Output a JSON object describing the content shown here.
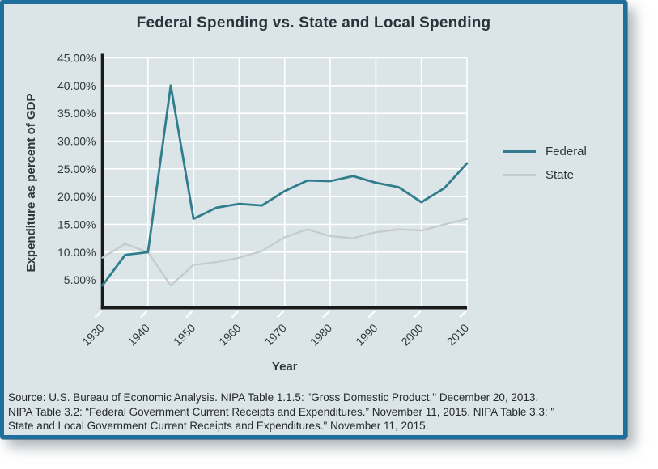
{
  "card": {
    "title": "Federal Spending vs. State and Local Spending"
  },
  "colors": {
    "background": "#dbe5e8",
    "border": "#1f6f9d",
    "axis": "#1a1a1a",
    "gridline": "#ffffff",
    "tick_text": "#2f363c",
    "federal_line": "#317d8d",
    "state_line": "#c4cbcd"
  },
  "chart_data": {
    "type": "line",
    "title": "Federal Spending vs. State and Local Spending",
    "xlabel": "Year",
    "ylabel": "Expenditure as percent of GDP",
    "xlim": [
      1930,
      2010
    ],
    "ylim": [
      0,
      45
    ],
    "grid": true,
    "legend_position": "right-center",
    "x": [
      1930,
      1935,
      1940,
      1945,
      1950,
      1955,
      1960,
      1965,
      1970,
      1975,
      1980,
      1985,
      1990,
      1995,
      2000,
      2005,
      2010
    ],
    "series": [
      {
        "name": "Federal",
        "color": "#317d8d",
        "values": [
          4.0,
          9.5,
          10.0,
          40.0,
          16.0,
          18.0,
          18.7,
          18.4,
          21.0,
          22.9,
          22.8,
          23.7,
          22.5,
          21.7,
          19.0,
          21.5,
          26.0
        ]
      },
      {
        "name": "State",
        "color": "#c4cbcd",
        "values": [
          9.0,
          11.5,
          10.0,
          4.0,
          7.7,
          8.2,
          9.0,
          10.2,
          12.7,
          14.1,
          12.9,
          12.5,
          13.6,
          14.1,
          13.9,
          15.0,
          16.0
        ]
      }
    ],
    "xtick_values": [
      1930,
      1940,
      1950,
      1960,
      1970,
      1980,
      1990,
      2000,
      2010
    ],
    "xtick_labels": [
      "1930",
      "1940",
      "1950",
      "1960",
      "1970",
      "1980",
      "1990",
      "2000",
      "2010"
    ],
    "ytick_values": [
      5,
      10,
      15,
      20,
      25,
      30,
      35,
      40,
      45
    ],
    "ytick_labels": [
      "5.00%",
      "10.00%",
      "15.00%",
      "20.00%",
      "25.00%",
      "30.00%",
      "35.00%",
      "40.00%",
      "45.00%"
    ]
  },
  "source": {
    "lines": [
      "Source: U.S. Bureau of Economic Analysis. NIPA Table 1.1.5: \"Gross Domestic Product.\" December 20, 2013.",
      "NIPA Table 3.2: “Federal Government Current Receipts and Expenditures.” November 11, 2015. NIPA Table 3.3: \"",
      "State and Local Government Current Receipts and Expenditures.\" November 11, 2015."
    ]
  }
}
